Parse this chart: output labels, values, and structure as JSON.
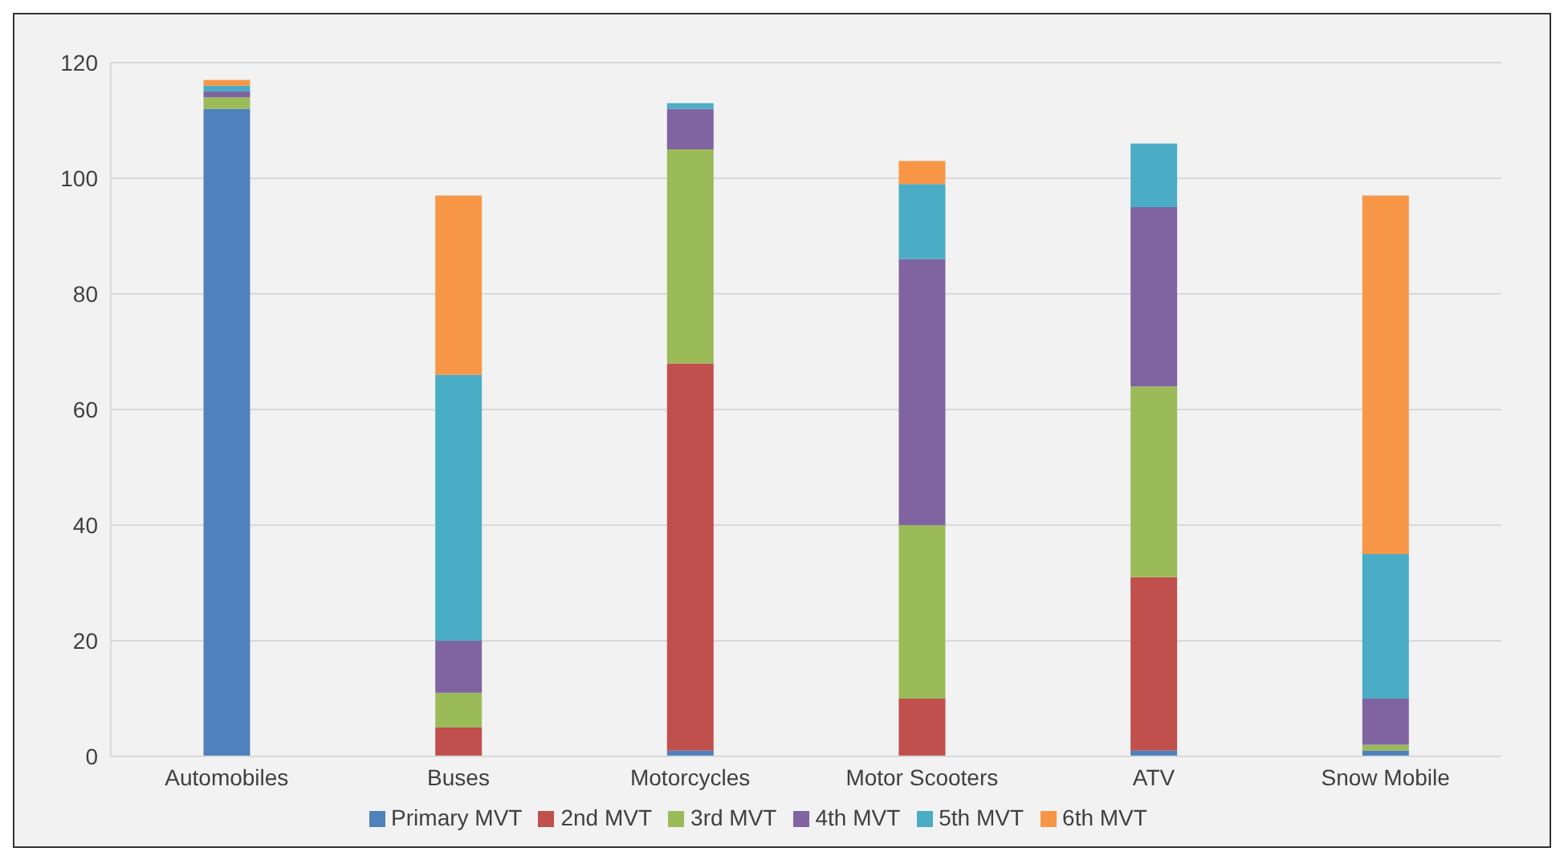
{
  "chart_data": {
    "type": "bar",
    "stacked": true,
    "categories": [
      "Automobiles",
      "Buses",
      "Motorcycles",
      "Motor Scooters",
      "ATV",
      "Snow Mobile"
    ],
    "series": [
      {
        "name": "Primary MVT",
        "color": "#4f81bd",
        "values": [
          112,
          0,
          1,
          0,
          1,
          1
        ]
      },
      {
        "name": "2nd MVT",
        "color": "#c0504d",
        "values": [
          0,
          5,
          67,
          10,
          30,
          0
        ]
      },
      {
        "name": "3rd MVT",
        "color": "#9bbb59",
        "values": [
          2,
          6,
          37,
          30,
          33,
          1
        ]
      },
      {
        "name": "4th MVT",
        "color": "#8064a2",
        "values": [
          1,
          9,
          7,
          46,
          31,
          8
        ]
      },
      {
        "name": "5th MVT",
        "color": "#4bacc6",
        "values": [
          1,
          46,
          1,
          13,
          11,
          25
        ]
      },
      {
        "name": "6th MVT",
        "color": "#f79646",
        "values": [
          1,
          31,
          0,
          4,
          0,
          62
        ]
      }
    ],
    "ylim": [
      0,
      120
    ],
    "yticks": [
      0,
      20,
      40,
      60,
      80,
      100,
      120
    ],
    "grid": "y",
    "legend": "bottom"
  }
}
